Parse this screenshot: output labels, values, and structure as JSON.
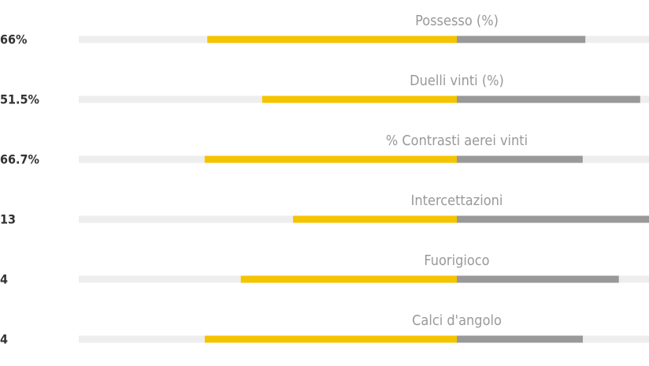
{
  "rows": [
    {
      "label": "Possesso (%)",
      "home_label": "66%",
      "home": 66,
      "away": 34
    },
    {
      "label": "Duelli vinti (%)",
      "home_label": "51.5%",
      "home": 51.5,
      "away": 48.5
    },
    {
      "label": "% Contrasti aerei vinti",
      "home_label": "66.7%",
      "home": 66.7,
      "away": 33.3
    },
    {
      "label": "Intercettazioni",
      "home_label": "13",
      "home": 13,
      "away": 17
    },
    {
      "label": "Fuorigioco",
      "home_label": "4",
      "home": 4,
      "away": 3
    },
    {
      "label": "Calci d'angolo",
      "home_label": "4",
      "home": 4,
      "away": 2
    }
  ]
}
